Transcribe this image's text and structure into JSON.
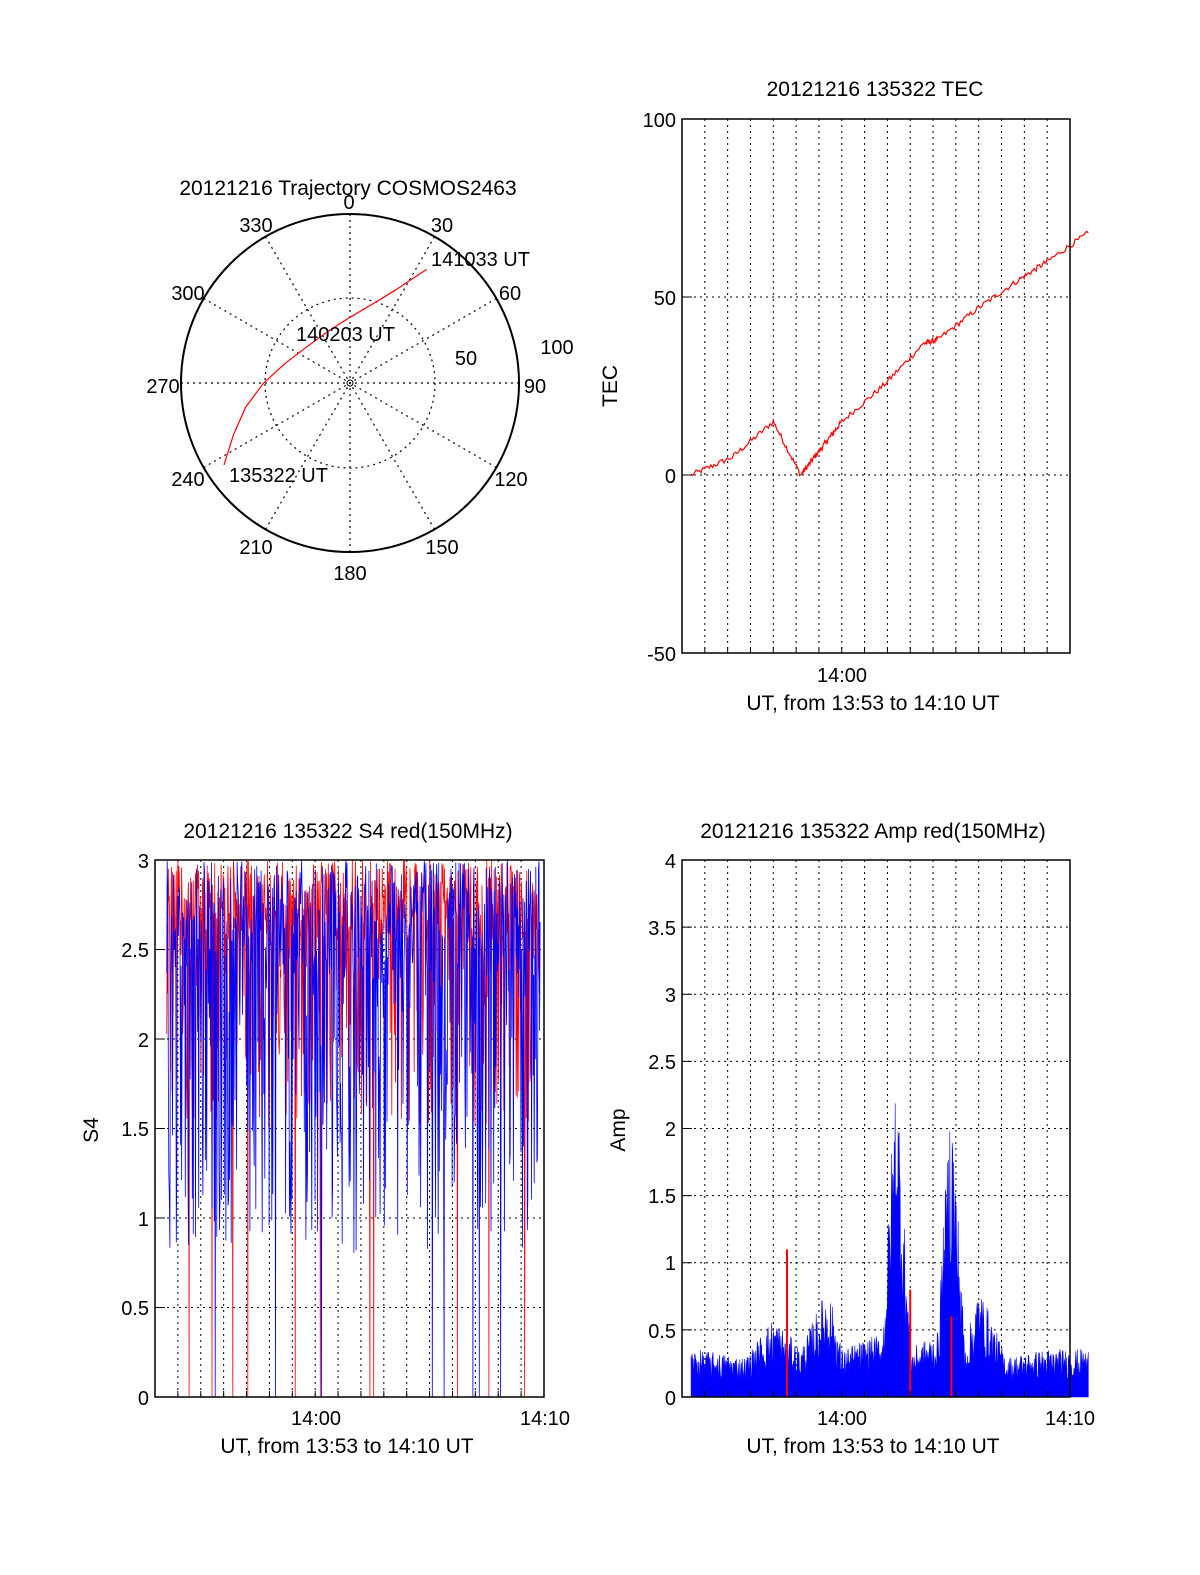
{
  "colors": {
    "red": "#ff0000",
    "blue": "#0000ff",
    "axis": "#000000",
    "grid": "#000000"
  },
  "chart_data": [
    {
      "type": "polar",
      "title": "20121216 Trajectory COSMOS2463",
      "angle_labels": [
        "0",
        "30",
        "60",
        "90",
        "120",
        "150",
        "180",
        "210",
        "240",
        "270",
        "300",
        "330"
      ],
      "radius_labels": [
        "50",
        "100"
      ],
      "track": {
        "color": "#ff0000",
        "points_az_el": [
          [
            237,
            10
          ],
          [
            246,
            22
          ],
          [
            257,
            33
          ],
          [
            270,
            44
          ],
          [
            287,
            54
          ],
          [
            310,
            60
          ],
          [
            338,
            60
          ],
          [
            0,
            55
          ],
          [
            15,
            47
          ],
          [
            26,
            35
          ],
          [
            31,
            25
          ],
          [
            34,
            17
          ]
        ],
        "annotations": [
          {
            "text": "135322 UT",
            "az": 237,
            "el": 10
          },
          {
            "text": "140203 UT",
            "az": 330,
            "el": 60
          },
          {
            "text": "141033 UT",
            "az": 34,
            "el": 17
          }
        ]
      }
    },
    {
      "type": "line",
      "title": "20121216 135322 TEC",
      "ylabel": "TEC",
      "xlabel": "UT, from 13:53 to 14:10 UT",
      "ylim": [
        -50,
        100
      ],
      "yticks": [
        "-50",
        "0",
        "50",
        "100"
      ],
      "xticks": [
        "14:00"
      ],
      "grid": true,
      "series": [
        {
          "color": "#ff0000",
          "x": [
            13.89,
            13.92,
            13.95,
            13.97,
            13.98,
            13.99,
            14.0,
            14.03,
            14.06,
            14.07,
            14.1,
            14.13,
            14.15,
            14.18
          ],
          "y": [
            0,
            5,
            15,
            0,
            5,
            10,
            15,
            25,
            37,
            38,
            47,
            55,
            60,
            68
          ]
        }
      ]
    },
    {
      "type": "line",
      "title": "20121216 135322 S4 red(150MHz)",
      "ylabel": "S4",
      "xlabel": "UT, from 13:53 to 14:10 UT",
      "ylim": [
        0,
        3
      ],
      "yticks": [
        "0",
        "0.5",
        "1",
        "1.5",
        "2",
        "2.5",
        "3"
      ],
      "xticks": [
        "14:00",
        "14:10"
      ],
      "grid": true,
      "series": [
        {
          "color": "#ff0000",
          "level_range": [
            1.5,
            3.0
          ]
        },
        {
          "color": "#0000ff",
          "level_range": [
            0.8,
            3.0
          ]
        }
      ]
    },
    {
      "type": "line",
      "title": "20121216 135322 Amp red(150MHz)",
      "ylabel": "Amp",
      "xlabel": "UT, from 13:53 to 14:10 UT",
      "ylim": [
        0,
        4
      ],
      "yticks": [
        "0",
        "0.5",
        "1",
        "1.5",
        "2",
        "2.5",
        "3",
        "3.5",
        "4"
      ],
      "xticks": [
        "14:00",
        "14:10"
      ],
      "grid": true,
      "series": [
        {
          "color": "#0000ff",
          "x": [
            13.89,
            13.93,
            13.95,
            13.97,
            13.99,
            14.0,
            14.03,
            14.04,
            14.05,
            14.07,
            14.08,
            14.09,
            14.1,
            14.12,
            14.15,
            14.18
          ],
          "y": [
            0.3,
            0.25,
            0.5,
            0.3,
            0.7,
            0.3,
            0.4,
            2.2,
            0.3,
            0.4,
            2.0,
            0.3,
            0.7,
            0.25,
            0.3,
            0.3
          ]
        },
        {
          "color": "#ff0000",
          "x": [
            13.96,
            14.05,
            14.08
          ],
          "y": [
            1.1,
            0.8,
            0.6
          ]
        }
      ]
    }
  ]
}
